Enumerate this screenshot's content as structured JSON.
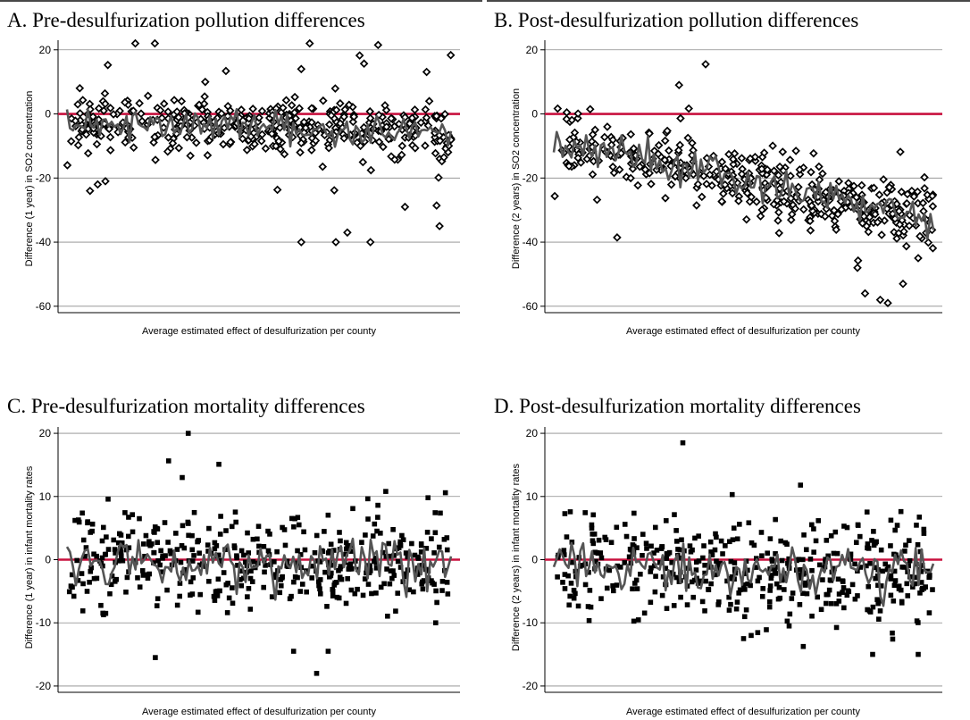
{
  "chart_data": [
    {
      "id": "A",
      "type": "scatter",
      "title": "A. Pre-desulfurization pollution differences",
      "xlabel": "Average estimated effect of desulfurization per county",
      "ylabel": "Difference (1 year) in SO2 concentration",
      "ylim": [
        -62,
        23
      ],
      "yticks": [
        -60,
        -40,
        -20,
        0,
        20
      ],
      "xlim": [
        0,
        1
      ],
      "reference_line": 0,
      "marker": "diamond",
      "grid": true,
      "n_points": 420,
      "trend_points": 130,
      "center_start": -3,
      "center_mid": -4,
      "center_end": -6,
      "spread": 4.2,
      "outlier_rate": 0.12,
      "outlier_scale": 12,
      "seed": 11,
      "colors": {
        "reference": "#c8103e",
        "trend": "#555555",
        "points": "#000000"
      },
      "points": [
        {
          "x": 0.06,
          "y": -24
        },
        {
          "x": 0.08,
          "y": -22
        },
        {
          "x": 0.1,
          "y": -21
        },
        {
          "x": 0.61,
          "y": -40
        },
        {
          "x": 0.7,
          "y": -40
        },
        {
          "x": 0.79,
          "y": -40
        },
        {
          "x": 0.73,
          "y": -37
        },
        {
          "x": 0.88,
          "y": -29
        },
        {
          "x": 0.97,
          "y": -35
        },
        {
          "x": 0.81,
          "y": 21.5
        },
        {
          "x": 0.61,
          "y": 14
        },
        {
          "x": 0.36,
          "y": 10
        }
      ]
    },
    {
      "id": "B",
      "type": "scatter",
      "title": "B. Post-desulfurization pollution differences",
      "xlabel": "Average estimated effect of desulfurization per county",
      "ylabel": "Difference (2 years) in SO2 concentration",
      "ylim": [
        -62,
        23
      ],
      "yticks": [
        -60,
        -40,
        -20,
        0,
        20
      ],
      "xlim": [
        0,
        1
      ],
      "reference_line": 0,
      "marker": "diamond",
      "grid": true,
      "n_points": 420,
      "trend_points": 130,
      "center_start": -8,
      "center_mid": -20,
      "center_end": -33,
      "spread": 5,
      "outlier_rate": 0.08,
      "outlier_scale": 9,
      "seed": 23,
      "colors": {
        "reference": "#c8103e",
        "trend": "#555555",
        "points": "#000000"
      },
      "points": [
        {
          "x": 0.4,
          "y": 15.5
        },
        {
          "x": 0.33,
          "y": 9
        },
        {
          "x": 0.82,
          "y": -56
        },
        {
          "x": 0.86,
          "y": -58
        },
        {
          "x": 0.88,
          "y": -59
        },
        {
          "x": 0.92,
          "y": -53
        },
        {
          "x": 0.96,
          "y": -45
        },
        {
          "x": 0.8,
          "y": -48
        }
      ]
    },
    {
      "id": "C",
      "type": "scatter",
      "title": "C. Pre-desulfurization mortality differences",
      "xlabel": "Average estimated effect of desulfurization per county",
      "ylabel": "Difference (1 year) in infant mortality rates",
      "ylim": [
        -21,
        21
      ],
      "yticks": [
        -20,
        -10,
        0,
        10,
        20
      ],
      "xlim": [
        0,
        1
      ],
      "reference_line": 0,
      "marker": "square",
      "grid": true,
      "n_points": 430,
      "trend_points": 130,
      "center_start": 0,
      "center_mid": -0.5,
      "center_end": 0,
      "spread": 3.6,
      "outlier_rate": 0.06,
      "outlier_scale": 7,
      "seed": 37,
      "colors": {
        "reference": "#c8103e",
        "trend": "#555555",
        "points": "#000000"
      },
      "points": [
        {
          "x": 0.3,
          "y": 13
        },
        {
          "x": 0.65,
          "y": -18
        },
        {
          "x": 0.68,
          "y": -14.5
        },
        {
          "x": 0.59,
          "y": -14.5
        },
        {
          "x": 0.23,
          "y": -15.5
        },
        {
          "x": 0.83,
          "y": 10.8
        },
        {
          "x": 0.96,
          "y": -10
        },
        {
          "x": 0.94,
          "y": 9.8
        }
      ]
    },
    {
      "id": "D",
      "type": "scatter",
      "title": "D. Post-desulfurization mortality differences",
      "xlabel": "Average estimated effect of desulfurization per county",
      "ylabel": "Difference (2 years) in infant mortality rates",
      "ylim": [
        -21,
        21
      ],
      "yticks": [
        -20,
        -10,
        0,
        10,
        20
      ],
      "xlim": [
        0,
        1
      ],
      "reference_line": 0,
      "marker": "square",
      "grid": true,
      "n_points": 430,
      "trend_points": 130,
      "center_start": 0,
      "center_mid": -1.5,
      "center_end": -2,
      "spread": 3.8,
      "outlier_rate": 0.06,
      "outlier_scale": 6,
      "seed": 53,
      "colors": {
        "reference": "#c8103e",
        "trend": "#555555",
        "points": "#000000"
      },
      "points": [
        {
          "x": 0.34,
          "y": 18.5
        },
        {
          "x": 0.65,
          "y": 11.8
        },
        {
          "x": 0.47,
          "y": 10.3
        },
        {
          "x": 0.84,
          "y": -15
        },
        {
          "x": 0.96,
          "y": -15
        },
        {
          "x": 0.5,
          "y": -12.5
        },
        {
          "x": 0.52,
          "y": -12
        },
        {
          "x": 0.62,
          "y": -10.5
        }
      ]
    }
  ]
}
